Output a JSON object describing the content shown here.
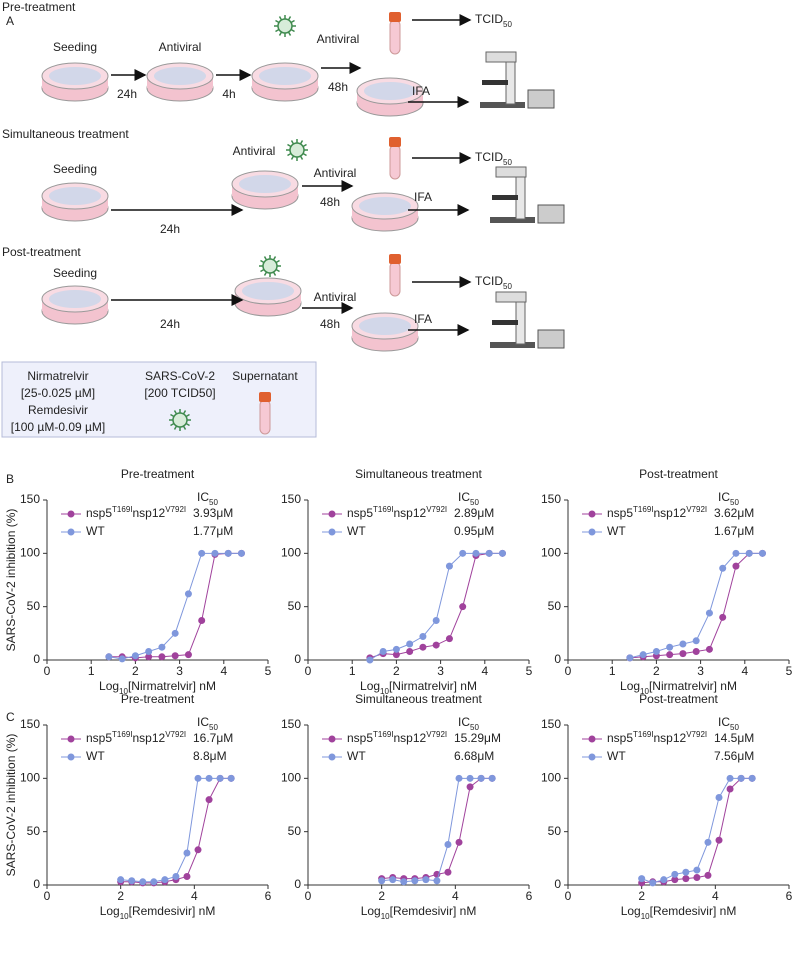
{
  "panel_a": {
    "label": "A",
    "pre": {
      "title": "Pre-treatment",
      "seeding": "Seeding",
      "t1": "24h",
      "antiviral1": "Antiviral",
      "t2": "4h",
      "antiviral2": "Antiviral",
      "t3": "48h",
      "tcid": [
        "TCID",
        "50"
      ],
      "ifa": "IFA"
    },
    "sim": {
      "title": "Simultaneous treatment",
      "seeding": "Seeding",
      "t1": "24h",
      "antiviral1": "Antiviral",
      "antiviral2": "Antiviral",
      "t2": "48h",
      "tcid": [
        "TCID",
        "50"
      ],
      "ifa": "IFA"
    },
    "post": {
      "title": "Post-treatment",
      "seeding": "Seeding",
      "t1": "24h",
      "antiviral": "Antiviral",
      "t2": "48h",
      "tcid": [
        "TCID",
        "50"
      ],
      "ifa": "IFA"
    },
    "legend": {
      "nirmatrelvir": "Nirmatrelvir",
      "nirm_range": "[25-0.025 µM]",
      "remdesivir": "Remdesivir",
      "rem_range": "[100 µM-0.09 µM]",
      "virus": "SARS-CoV-2",
      "virus_dose": "[200 TCID50]",
      "supernatant": "Supernatant"
    }
  },
  "row_labels": [
    "B",
    "C"
  ],
  "chart_data": [
    {
      "type": "line",
      "title": "Pre-treatment",
      "ylabel": "SARS-CoV-2 inhibition (%)",
      "xlabel": [
        "Log",
        "10",
        "[Nirmatrelvir] nM"
      ],
      "ic_header": [
        "IC",
        "50"
      ],
      "xlim": [
        0,
        5
      ],
      "xticks": [
        0,
        1,
        2,
        3,
        4,
        5
      ],
      "ylim": [
        0,
        150
      ],
      "yticks": [
        0,
        50,
        100,
        150
      ],
      "x": [
        1.4,
        1.7,
        2.0,
        2.3,
        2.6,
        2.9,
        3.2,
        3.5,
        3.8,
        4.1,
        4.4
      ],
      "series": [
        {
          "name": [
            "nsp5",
            "T169I",
            "nsp12",
            "V792I"
          ],
          "color": "#a0429c",
          "ic50": "3.93μM",
          "values": [
            3,
            3,
            2,
            3,
            3,
            4,
            5,
            37,
            99,
            100,
            100
          ]
        },
        {
          "name": [
            "WT"
          ],
          "color": "#7f97dc",
          "ic50": "1.77μM",
          "values": [
            3,
            1,
            4,
            8,
            12,
            25,
            62,
            100,
            100,
            100,
            100
          ]
        }
      ]
    },
    {
      "type": "line",
      "title": "Simultaneous treatment",
      "xlabel": [
        "Log",
        "10",
        "[Nirmatrelvir] nM"
      ],
      "ic_header": [
        "IC",
        "50"
      ],
      "xlim": [
        0,
        5
      ],
      "xticks": [
        0,
        1,
        2,
        3,
        4,
        5
      ],
      "ylim": [
        0,
        150
      ],
      "yticks": [
        0,
        50,
        100,
        150
      ],
      "x": [
        1.4,
        1.7,
        2.0,
        2.3,
        2.6,
        2.9,
        3.2,
        3.5,
        3.8,
        4.1,
        4.4
      ],
      "series": [
        {
          "name": [
            "nsp5",
            "T169I",
            "nsp12",
            "V792I"
          ],
          "color": "#a0429c",
          "ic50": "2.89μM",
          "values": [
            2,
            6,
            5,
            8,
            12,
            14,
            20,
            50,
            98,
            100,
            100
          ]
        },
        {
          "name": [
            "WT"
          ],
          "color": "#7f97dc",
          "ic50": "0.95μM",
          "values": [
            0,
            8,
            10,
            15,
            22,
            37,
            88,
            100,
            100,
            100,
            100
          ]
        }
      ]
    },
    {
      "type": "line",
      "title": "Post-treatment",
      "xlabel": [
        "Log",
        "10",
        "[Nirmatrelvir] nM"
      ],
      "ic_header": [
        "IC",
        "50"
      ],
      "xlim": [
        0,
        5
      ],
      "xticks": [
        0,
        1,
        2,
        3,
        4,
        5
      ],
      "ylim": [
        0,
        150
      ],
      "yticks": [
        0,
        50,
        100,
        150
      ],
      "x": [
        1.4,
        1.7,
        2.0,
        2.3,
        2.6,
        2.9,
        3.2,
        3.5,
        3.8,
        4.1,
        4.4
      ],
      "series": [
        {
          "name": [
            "nsp5",
            "T169I",
            "nsp12",
            "V792I"
          ],
          "color": "#a0429c",
          "ic50": "3.62μM",
          "values": [
            2,
            3,
            4,
            5,
            6,
            8,
            10,
            40,
            88,
            100,
            100
          ]
        },
        {
          "name": [
            "WT"
          ],
          "color": "#7f97dc",
          "ic50": "1.67μM",
          "values": [
            2,
            5,
            8,
            12,
            15,
            18,
            44,
            86,
            100,
            100,
            100
          ]
        }
      ]
    },
    {
      "type": "line",
      "title": "Pre-treatment",
      "ylabel": "SARS-CoV-2 inhibition (%)",
      "xlabel": [
        "Log",
        "10",
        "[Remdesivir] nM"
      ],
      "ic_header": [
        "IC",
        "50"
      ],
      "xlim": [
        0,
        6
      ],
      "xticks": [
        0,
        2,
        4,
        6
      ],
      "ylim": [
        0,
        150
      ],
      "yticks": [
        0,
        50,
        100,
        150
      ],
      "x": [
        2.0,
        2.3,
        2.6,
        2.9,
        3.2,
        3.5,
        3.8,
        4.1,
        4.4,
        4.7,
        5.0
      ],
      "series": [
        {
          "name": [
            "nsp5",
            "T169I",
            "nsp12",
            "V792I"
          ],
          "color": "#a0429c",
          "ic50": "16.7μM",
          "values": [
            3,
            3,
            2,
            2,
            3,
            5,
            8,
            33,
            80,
            100,
            100
          ]
        },
        {
          "name": [
            "WT"
          ],
          "color": "#7f97dc",
          "ic50": "8.8μM",
          "values": [
            5,
            4,
            3,
            3,
            5,
            8,
            30,
            100,
            100,
            100,
            100
          ]
        }
      ]
    },
    {
      "type": "line",
      "title": "Simultaneous treatment",
      "xlabel": [
        "Log",
        "10",
        "[Remdesivir] nM"
      ],
      "ic_header": [
        "IC",
        "50"
      ],
      "xlim": [
        0,
        6
      ],
      "xticks": [
        0,
        2,
        4,
        6
      ],
      "ylim": [
        0,
        150
      ],
      "yticks": [
        0,
        50,
        100,
        150
      ],
      "x": [
        2.0,
        2.3,
        2.6,
        2.9,
        3.2,
        3.5,
        3.8,
        4.1,
        4.4,
        4.7,
        5.0
      ],
      "series": [
        {
          "name": [
            "nsp5",
            "T169I",
            "nsp12",
            "V792I"
          ],
          "color": "#a0429c",
          "ic50": "15.29μM",
          "values": [
            6,
            7,
            6,
            6,
            7,
            10,
            12,
            40,
            92,
            100,
            100
          ]
        },
        {
          "name": [
            "WT"
          ],
          "color": "#7f97dc",
          "ic50": "6.68μM",
          "values": [
            4,
            5,
            3,
            4,
            5,
            4,
            38,
            100,
            100,
            100,
            100
          ]
        }
      ]
    },
    {
      "type": "line",
      "title": "Post-treatment",
      "xlabel": [
        "Log",
        "10",
        "[Remdesivir] nM"
      ],
      "ic_header": [
        "IC",
        "50"
      ],
      "xlim": [
        0,
        6
      ],
      "xticks": [
        0,
        2,
        4,
        6
      ],
      "ylim": [
        0,
        150
      ],
      "yticks": [
        0,
        50,
        100,
        150
      ],
      "x": [
        2.0,
        2.3,
        2.6,
        2.9,
        3.2,
        3.5,
        3.8,
        4.1,
        4.4,
        4.7,
        5.0
      ],
      "series": [
        {
          "name": [
            "nsp5",
            "T169I",
            "nsp12",
            "V792I"
          ],
          "color": "#a0429c",
          "ic50": "14.5μM",
          "values": [
            2,
            3,
            3,
            5,
            6,
            7,
            9,
            42,
            90,
            100,
            100
          ]
        },
        {
          "name": [
            "WT"
          ],
          "color": "#7f97dc",
          "ic50": "7.56μM",
          "values": [
            6,
            2,
            5,
            10,
            12,
            14,
            40,
            82,
            100,
            100,
            100
          ]
        }
      ]
    }
  ]
}
